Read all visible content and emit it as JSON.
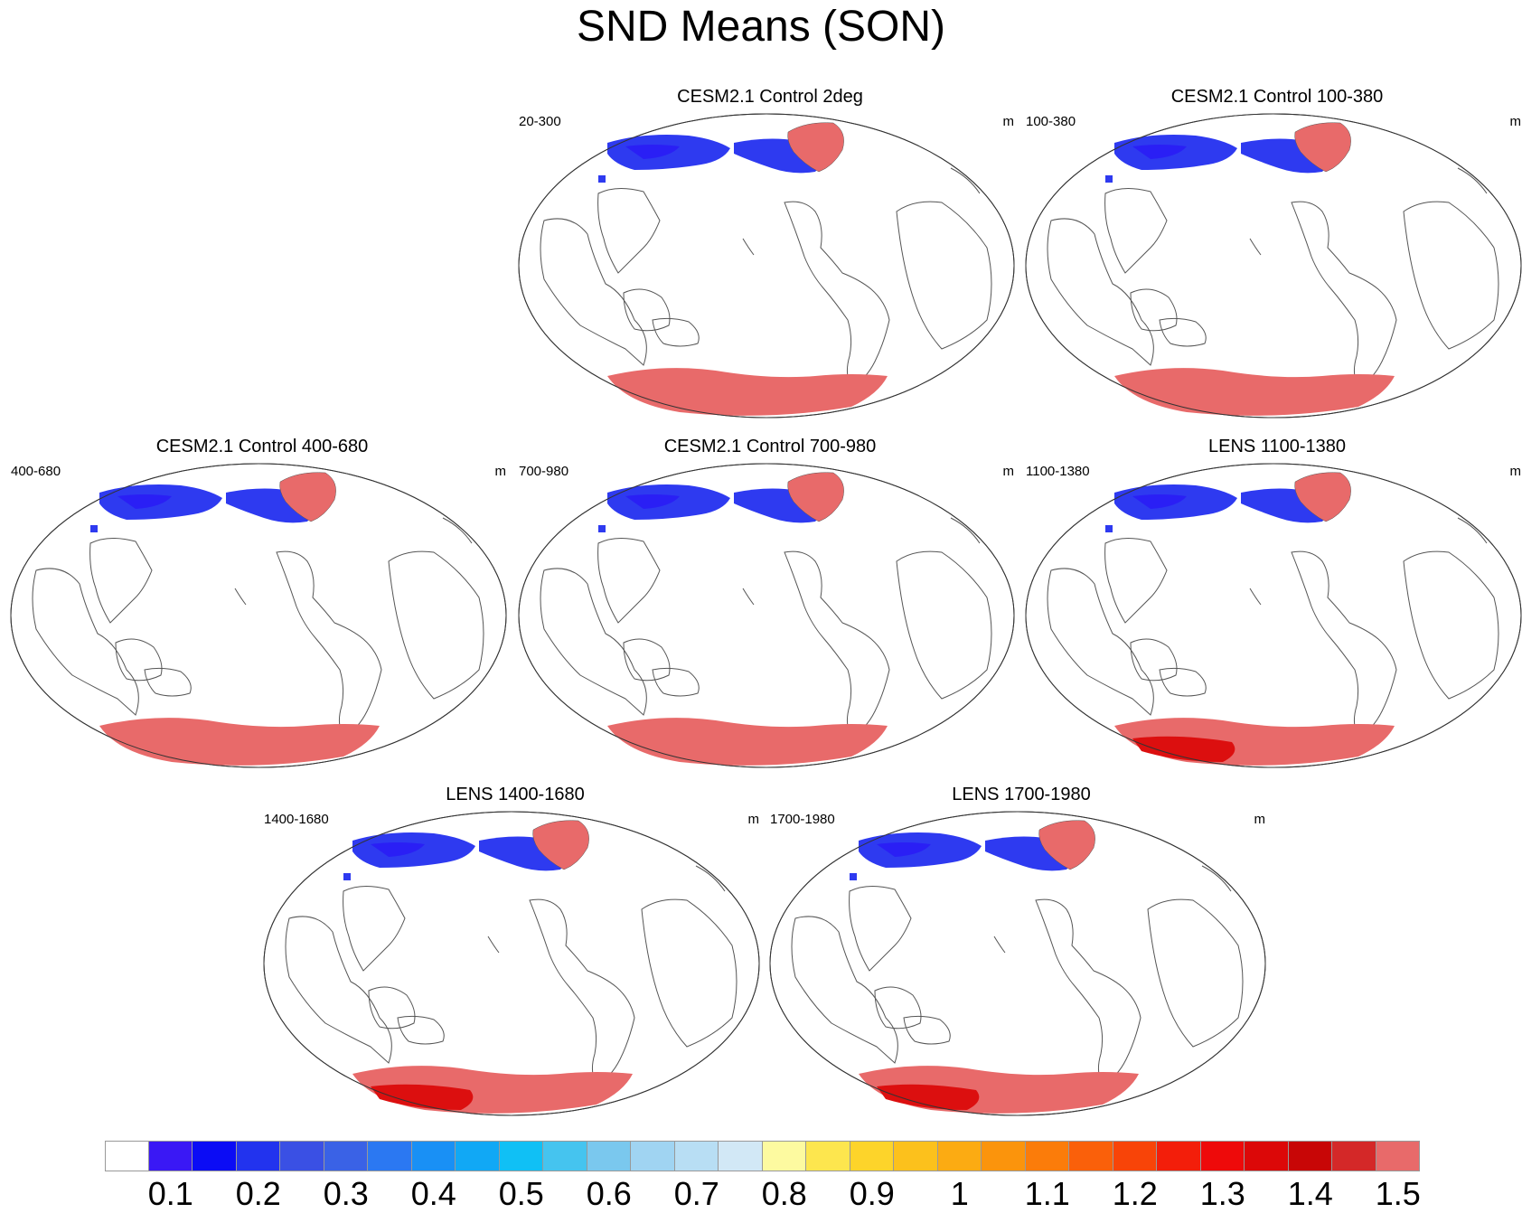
{
  "title": "SND Means (SON)",
  "colors": {
    "north_snow": "#2e3af0",
    "north_snow_dark": "#2a1ff5",
    "greenland": "#e86a6a",
    "antarctica": "#e86a6a",
    "antarctica_core": "#dc0f0f",
    "coast": "#555555",
    "outline": "#333333"
  },
  "panels": [
    {
      "title": "CESM2.1 Control 2deg",
      "left_label": "20-300",
      "right_label": "m",
      "antarctic_core": false
    },
    {
      "title": "CESM2.1 Control 100-380",
      "left_label": "100-380",
      "right_label": "m",
      "antarctic_core": false
    },
    {
      "title": "CESM2.1 Control 400-680",
      "left_label": "400-680",
      "right_label": "m",
      "antarctic_core": false
    },
    {
      "title": "CESM2.1 Control 700-980",
      "left_label": "700-980",
      "right_label": "m",
      "antarctic_core": false
    },
    {
      "title": "LENS 1100-1380",
      "left_label": "1100-1380",
      "right_label": "m",
      "antarctic_core": true
    },
    {
      "title": "LENS 1400-1680",
      "left_label": "1400-1680",
      "right_label": "m",
      "antarctic_core": true
    },
    {
      "title": "LENS 1700-1980",
      "left_label": "1700-1980",
      "right_label": "m",
      "antarctic_core": true
    }
  ],
  "colorbar": {
    "colors": [
      "#ffffff",
      "#3a18f5",
      "#0b0cf5",
      "#2233ee",
      "#3a50e4",
      "#3a62e6",
      "#2b78f2",
      "#1990f5",
      "#11a8f5",
      "#10c0f5",
      "#45c4ef",
      "#7ac8ee",
      "#a0d4f2",
      "#b8def4",
      "#d2e8f6",
      "#fdfaa0",
      "#fde64e",
      "#fdd42a",
      "#fcc11c",
      "#fcab12",
      "#fb940c",
      "#fb7c0a",
      "#fa600a",
      "#f84408",
      "#f31e0a",
      "#ee0a0a",
      "#dc0808",
      "#c80606",
      "#d42828",
      "#e86a6a"
    ],
    "tick_labels": [
      "0.1",
      "0.2",
      "0.3",
      "0.4",
      "0.5",
      "0.6",
      "0.7",
      "0.8",
      "0.9",
      "1",
      "1.1",
      "1.2",
      "1.3",
      "1.4",
      "1.5"
    ]
  }
}
